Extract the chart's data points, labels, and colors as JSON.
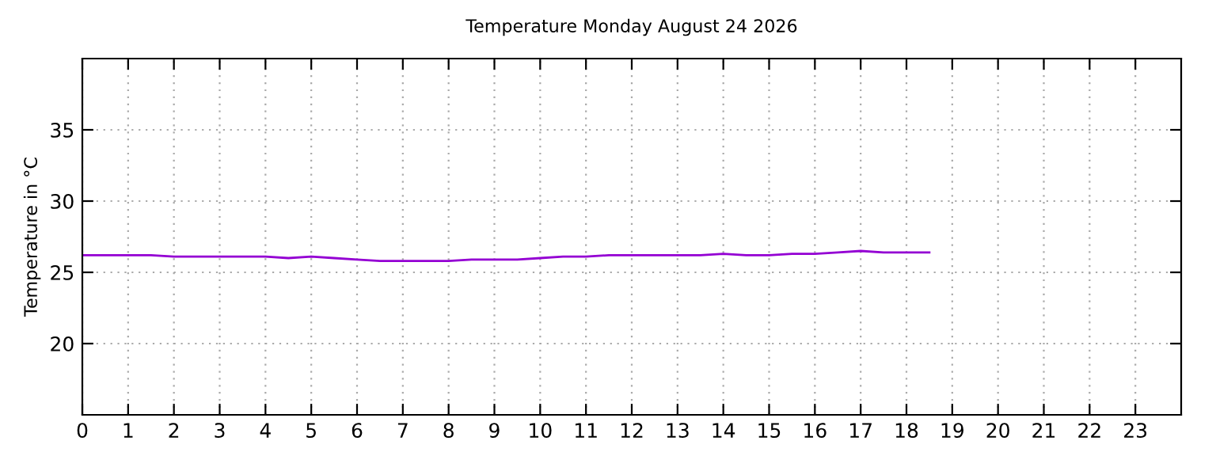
{
  "chart_data": {
    "type": "line",
    "title": "Temperature Monday August 24 2026",
    "ylabel": "Temperature in °C",
    "series": [
      {
        "color": "#9400d3",
        "x": [
          0,
          0.5,
          1,
          1.5,
          2,
          2.5,
          3,
          3.5,
          4,
          4.5,
          5,
          5.5,
          6,
          6.5,
          7,
          7.5,
          8,
          8.5,
          9,
          9.5,
          10,
          10.5,
          11,
          11.5,
          12,
          12.5,
          13,
          13.5,
          14,
          14.5,
          15,
          15.5,
          16,
          16.5,
          17,
          17.5,
          18,
          18.5
        ],
        "values": [
          26.2,
          26.2,
          26.2,
          26.2,
          26.1,
          26.1,
          26.1,
          26.1,
          26.1,
          26.0,
          26.1,
          26.0,
          25.9,
          25.8,
          25.8,
          25.8,
          25.8,
          25.9,
          25.9,
          25.9,
          26.0,
          26.1,
          26.1,
          26.2,
          26.2,
          26.2,
          26.2,
          26.2,
          26.3,
          26.2,
          26.2,
          26.3,
          26.3,
          26.4,
          26.5,
          26.4,
          26.4,
          26.4
        ]
      }
    ],
    "xlim": [
      0,
      24
    ],
    "xticks": [
      0,
      1,
      2,
      3,
      4,
      5,
      6,
      7,
      8,
      9,
      10,
      11,
      12,
      13,
      14,
      15,
      16,
      17,
      18,
      19,
      20,
      21,
      22,
      23
    ],
    "ylim": [
      15,
      40
    ],
    "yticks": [
      20,
      25,
      30,
      35
    ],
    "grid": true,
    "line_style": "solid",
    "marker": "none"
  }
}
